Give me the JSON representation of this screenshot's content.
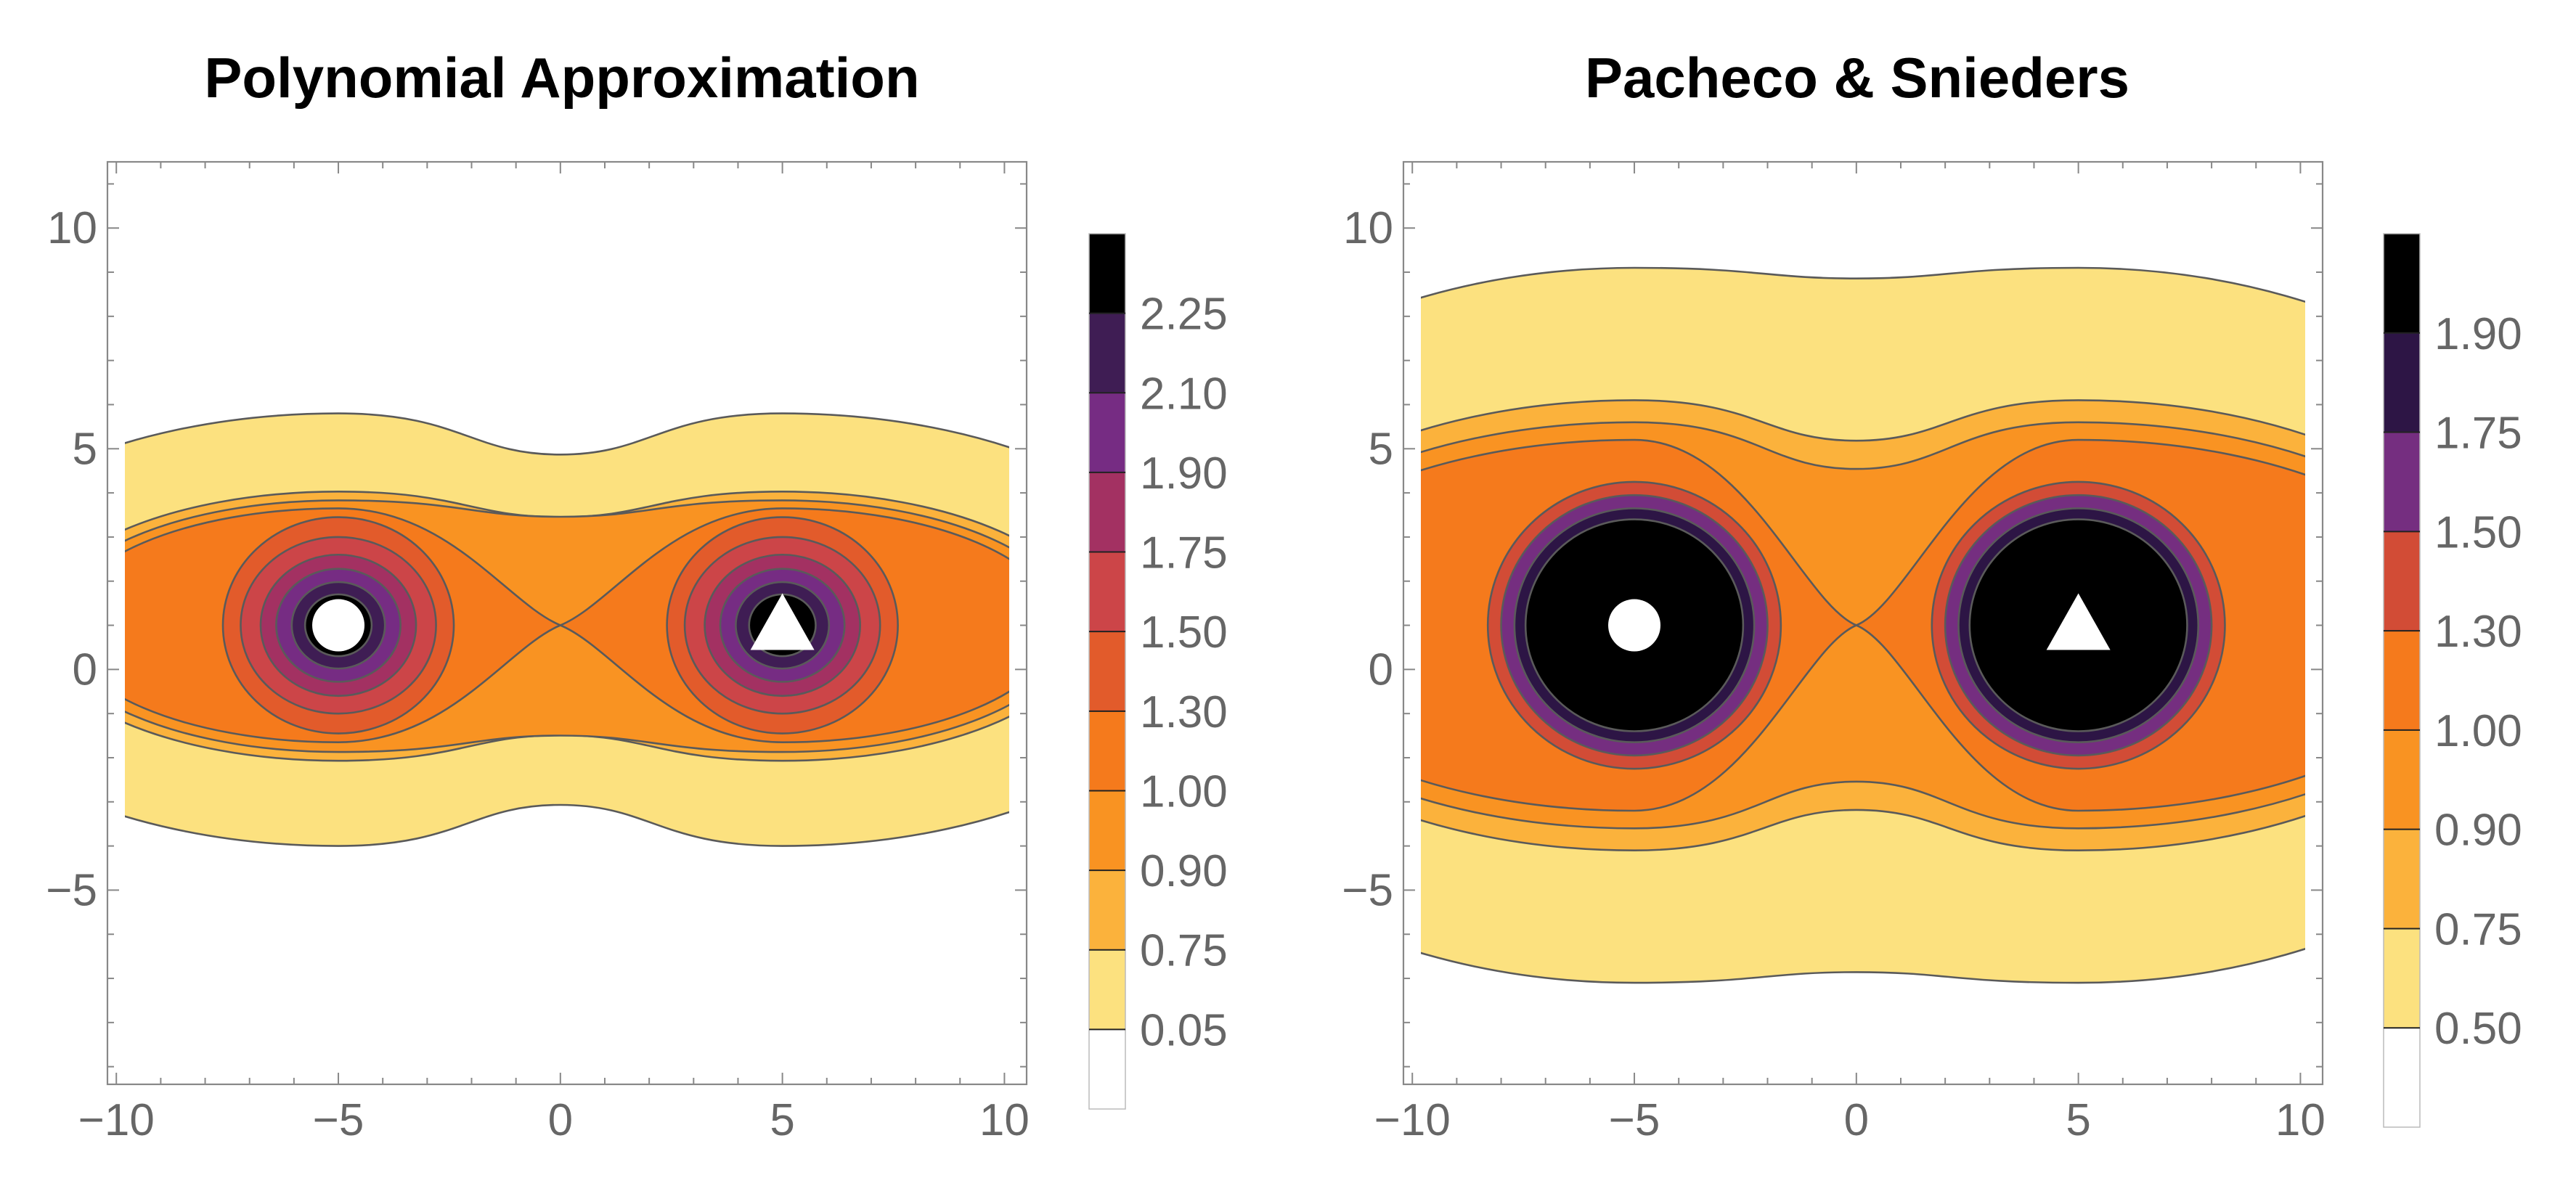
{
  "chart_data": [
    {
      "type": "contour",
      "title": "Polynomial Approximation",
      "xlim": [
        -10.2,
        10.5
      ],
      "ylim": [
        -9.4,
        11.5
      ],
      "x_ticks": [
        -10,
        -5,
        0,
        5,
        10
      ],
      "y_ticks": [
        10,
        5,
        0,
        -5
      ],
      "x_tick_labels": [
        "−10",
        "−5",
        "0",
        "5",
        "10"
      ],
      "y_tick_labels": [
        "10",
        "5",
        "0",
        "−5"
      ],
      "sources": [
        {
          "marker": "circle",
          "x": -5,
          "y": 1
        },
        {
          "marker": "triangle",
          "x": 5,
          "y": 1
        }
      ],
      "legend_labels": [
        "0.05",
        "0.75",
        "0.90",
        "1.00",
        "1.30",
        "1.50",
        "1.75",
        "1.90",
        "2.10",
        "2.25"
      ],
      "band_colors": [
        "#ffffff",
        "#fce17f",
        "#fbb23c",
        "#f99322",
        "#f57a1c",
        "#e25b2b",
        "#cc4548",
        "#a33162",
        "#762c83",
        "#3f1d54",
        "#000000"
      ],
      "contour_levels": [
        {
          "value": 0.05,
          "rx": 9.5,
          "ry": 4.9,
          "neck": 0.81,
          "cy": 0.9
        },
        {
          "value": 0.75,
          "rx": 6.9,
          "ry": 3.05,
          "neck": 0.81,
          "cy": 0.98
        },
        {
          "value": 0.9,
          "rx": 6.55,
          "ry": 2.85,
          "neck": 0.87,
          "cy": 0.98
        },
        {
          "value": 1.0,
          "rx": 6.2,
          "ry": 2.65,
          "neck": 1.0,
          "cy": 1.0
        },
        {
          "value": 1.3,
          "rx": 2.6,
          "ry": 2.45,
          "cy": 1.0
        },
        {
          "value": 1.5,
          "rx": 2.2,
          "ry": 2.0,
          "cy": 1.0
        },
        {
          "value": 1.75,
          "rx": 1.75,
          "ry": 1.6,
          "cy": 1.0
        },
        {
          "value": 1.9,
          "rx": 1.4,
          "ry": 1.28,
          "cy": 1.0
        },
        {
          "value": 2.1,
          "rx": 1.05,
          "ry": 0.98,
          "cy": 1.0
        },
        {
          "value": 2.25,
          "rx": 0.75,
          "ry": 0.7,
          "cy": 1.0
        }
      ]
    },
    {
      "type": "contour",
      "title": "Pacheco & Snieders",
      "xlim": [
        -10.2,
        10.5
      ],
      "ylim": [
        -9.4,
        11.5
      ],
      "x_ticks": [
        -10,
        -5,
        0,
        5,
        10
      ],
      "y_ticks": [
        10,
        5,
        0,
        -5
      ],
      "x_tick_labels": [
        "−10",
        "−5",
        "0",
        "5",
        "10"
      ],
      "y_tick_labels": [
        "10",
        "5",
        "0",
        "−5"
      ],
      "sources": [
        {
          "marker": "circle",
          "x": -5,
          "y": 1
        },
        {
          "marker": "triangle",
          "x": 5,
          "y": 1
        }
      ],
      "legend_labels": [
        "0.50",
        "0.75",
        "0.90",
        "1.00",
        "1.30",
        "1.50",
        "1.75",
        "1.90"
      ],
      "band_colors": [
        "#ffffff",
        "#fce17f",
        "#fbb23c",
        "#f99322",
        "#f57a1c",
        "#d24c36",
        "#752e80",
        "#2d1545",
        "#000000"
      ],
      "contour_levels": [
        {
          "value": 0.5,
          "rx": 12.0,
          "ry": 8.1,
          "neck": 0.97,
          "cy": 1.0
        },
        {
          "value": 0.75,
          "rx": 9.6,
          "ry": 5.1,
          "neck": 0.82,
          "cy": 1.0
        },
        {
          "value": 0.9,
          "rx": 9.2,
          "ry": 4.6,
          "neck": 0.77,
          "cy": 1.0
        },
        {
          "value": 1.0,
          "rx": 8.75,
          "ry": 4.2,
          "neck": 1.0,
          "cy": 1.0
        },
        {
          "value": 1.3,
          "rx": 3.3,
          "ry": 3.25,
          "cy": 1.0
        },
        {
          "value": 1.5,
          "rx": 3.0,
          "ry": 2.95,
          "cy": 1.0
        },
        {
          "value": 1.75,
          "rx": 2.7,
          "ry": 2.65,
          "cy": 1.0
        },
        {
          "value": 1.9,
          "rx": 2.45,
          "ry": 2.4,
          "cy": 1.0
        }
      ]
    }
  ]
}
